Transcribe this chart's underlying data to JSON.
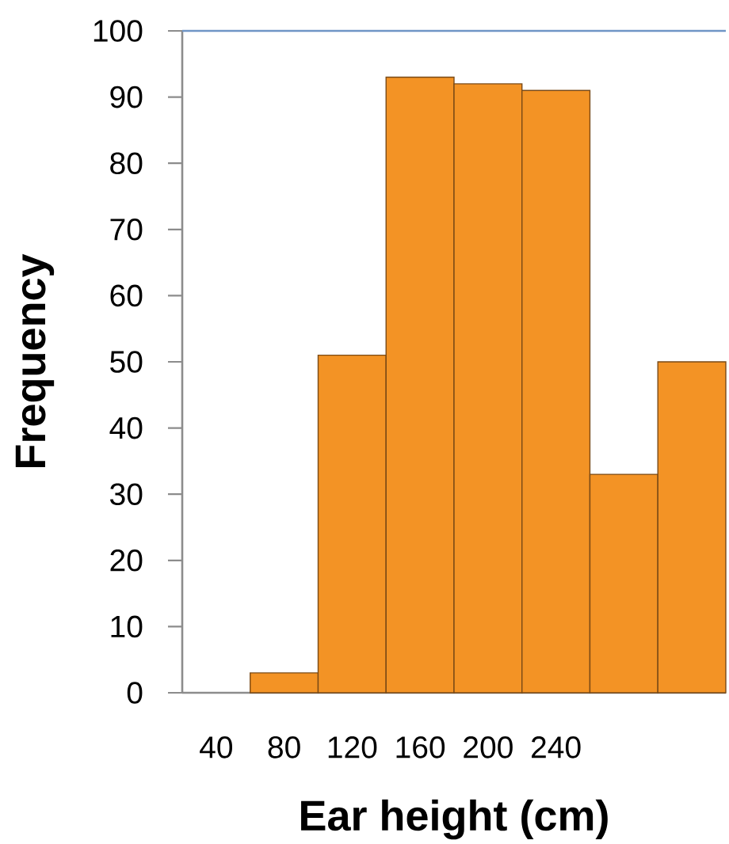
{
  "chart_data": {
    "type": "bar",
    "xlabel": "Ear height (cm)",
    "ylabel": "Frequency",
    "categories": [
      "40",
      "80",
      "120",
      "160",
      "200",
      "240",
      null,
      null
    ],
    "values": [
      null,
      3,
      51,
      93,
      92,
      91,
      33,
      50
    ],
    "color": "#f39325",
    "ylim": [
      0,
      100
    ],
    "yticks": [
      0,
      10,
      20,
      30,
      40,
      50,
      60,
      70,
      80,
      90,
      100
    ]
  }
}
